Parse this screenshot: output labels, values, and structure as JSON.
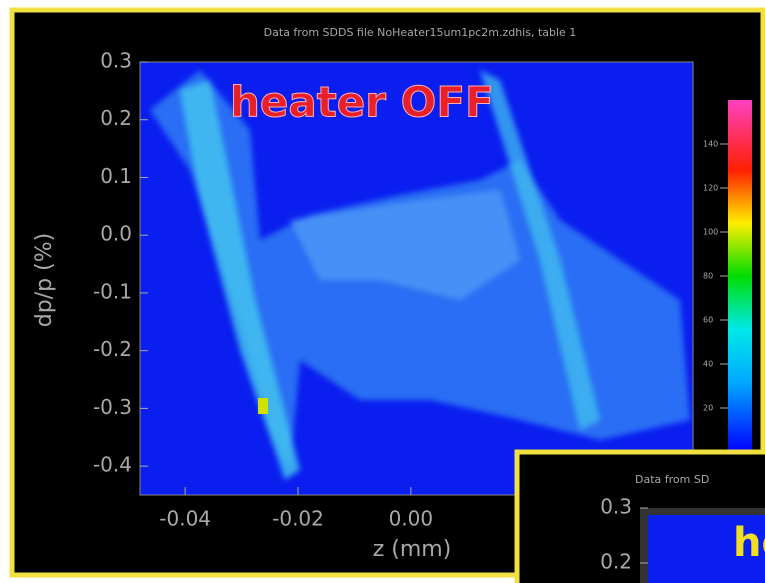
{
  "chart_data": [
    {
      "type": "heatmap",
      "title": "Data from SDDS file NoHeater15um1pc2m.zdhis, table 1",
      "annotation": "heater OFF",
      "xlabel": "z (mm)",
      "ylabel": "dp/p (%)",
      "xlim": [
        -0.048,
        0.05
      ],
      "xticks": [
        -0.04,
        -0.02,
        {
          "value": 0,
          "label": "0.00"
        }
      ],
      "ylim": [
        -0.45,
        0.3
      ],
      "yticks": [
        0.3,
        0.2,
        0.1,
        {
          "value": 0,
          "label": "0.0"
        },
        -0.1,
        -0.2,
        -0.3,
        -0.4
      ],
      "zlim": [
        0,
        160
      ],
      "zticks": [
        20,
        40,
        60,
        80,
        100,
        120,
        140
      ],
      "grid": false
    },
    {
      "type": "heatmap",
      "title": "Data from SD",
      "annotation": "he",
      "yticks": [
        0.3,
        0.2
      ]
    }
  ]
}
